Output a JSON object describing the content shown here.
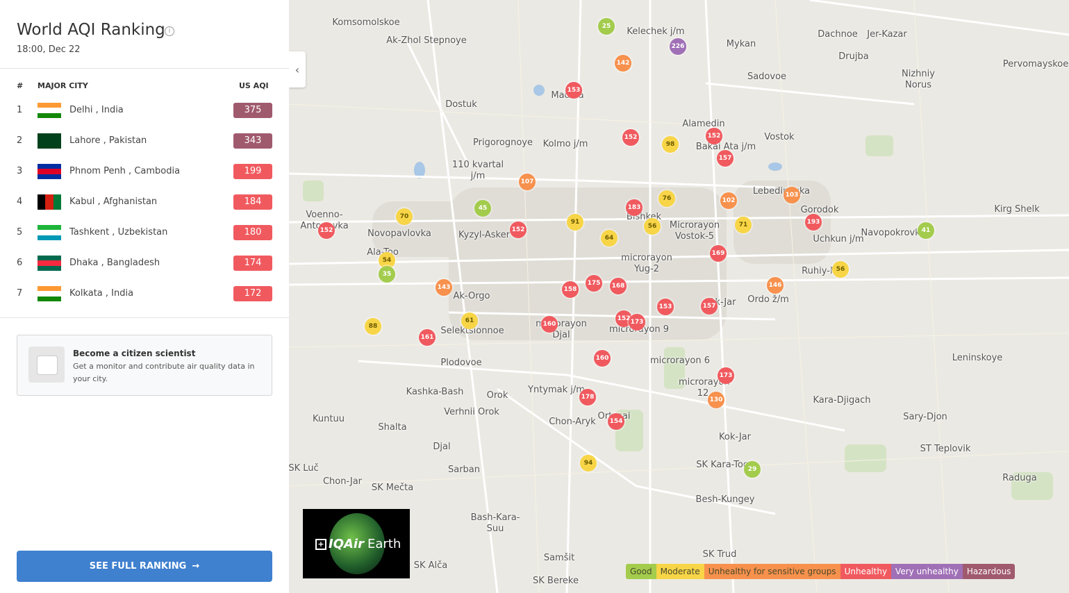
{
  "sidebar": {
    "title": "World AQI Ranking",
    "time": "18:00, Dec 22",
    "columns": [
      "#",
      "MAJOR CITY",
      "US AQI"
    ],
    "rows": [
      {
        "rank": 1,
        "city": "Delhi , India",
        "aqi": 375
      },
      {
        "rank": 2,
        "city": "Lahore , Pakistan",
        "aqi": 343
      },
      {
        "rank": 3,
        "city": "Phnom Penh , Cambodia",
        "aqi": 199
      },
      {
        "rank": 4,
        "city": "Kabul , Afghanistan",
        "aqi": 184
      },
      {
        "rank": 5,
        "city": "Tashkent , Uzbekistan",
        "aqi": 180
      },
      {
        "rank": 6,
        "city": "Dhaka , Bangladesh",
        "aqi": 174
      },
      {
        "rank": 7,
        "city": "Kolkata , India",
        "aqi": 172
      }
    ],
    "card": {
      "title": "Become a citizen scientist",
      "text": "Get a monitor and contribute air quality data in your city."
    },
    "button": "SEE FULL RANKING"
  },
  "map": {
    "places": [
      "Komsomolskoe",
      "Ak-Zhol Stepnoye",
      "Kelechek j/m",
      "Mykan",
      "Dachnoe",
      "Jer-Kazar",
      "Drujba",
      "Sadovoe",
      "Nizhniy Norus",
      "Pervomayskoe",
      "Dostuk",
      "Alamedin",
      "Vostok",
      "Prigorognoye",
      "Kolmo j/m",
      "Bakai Ata j/m",
      "110 kvartal j/m",
      "Lebedinovka",
      "Gorodok",
      "Kirg Shelk",
      "Voenno-Antonovka",
      "Novopavlovka",
      "Kyzyl-Asker",
      "Bishkek",
      "Microrayon Vostok-5",
      "Navopokrovka",
      "Uchkun j/m",
      "Ala-Too",
      "microrayon Yug-2",
      "Ruhiy-Mirs",
      "Ak-Orgo",
      "Ak-Jar",
      "Ordo ž/m",
      "Selektsionnoe",
      "microrayon 9",
      "microrayon Djal",
      "Plodovoe",
      "microrayon 6",
      "Leninskoye",
      "microrayon 12",
      "Kashka-Bash",
      "Orok",
      "Yntymak j/m",
      "Kara-Djigach",
      "Kuntuu",
      "Verhnii Orok",
      "Shalta",
      "Chon-Aryk",
      "Sary-Djon",
      "Kok-Jar",
      "Djal",
      "ST Teplovik",
      "SK Luč",
      "SK Kara-Too",
      "Sarban",
      "Chon-Jar",
      "Raduga",
      "SK Mečta",
      "Besh-Kungey",
      "Bash-Kara-Suu",
      "Samšit",
      "SK Trud",
      "SK Alča",
      "SK Bereke",
      "Ortosai",
      "Madina"
    ],
    "markers": [
      25,
      226,
      142,
      153,
      152,
      98,
      152,
      157,
      107,
      45,
      152,
      183,
      76,
      102,
      103,
      91,
      56,
      71,
      193,
      41,
      70,
      152,
      64,
      169,
      54,
      35,
      56,
      143,
      158,
      175,
      168,
      146,
      153,
      157,
      61,
      160,
      152,
      173,
      88,
      161,
      160,
      173,
      130,
      178,
      154,
      94,
      29
    ],
    "legend": [
      {
        "label": "Good",
        "color": "#a3cc4d"
      },
      {
        "label": "Moderate",
        "color": "#f7d547"
      },
      {
        "label": "Unhealthy for sensitive groups",
        "color": "#f7914d"
      },
      {
        "label": "Unhealthy",
        "color": "#f05a5f"
      },
      {
        "label": "Very unhealthy",
        "color": "#a070b6"
      },
      {
        "label": "Hazardous",
        "color": "#a05a6e"
      }
    ],
    "logo": {
      "brand": "IQAir",
      "product": "Earth"
    }
  }
}
